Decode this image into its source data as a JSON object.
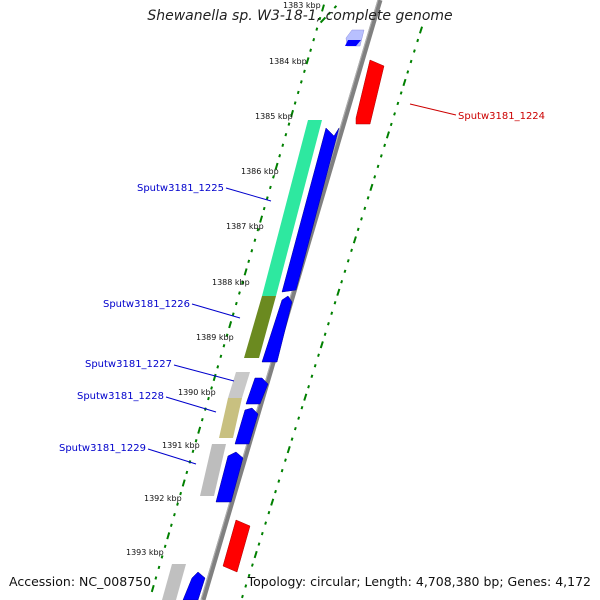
{
  "title": "Shewanella sp. W3-18-1, complete genome",
  "footer": {
    "accession": "Accession: NC_008750",
    "summary": "Topology: circular; Length: 4,708,380 bp; Genes: 4,172"
  },
  "colors": {
    "backbone": "#808080",
    "forward_gene": "#0000ff",
    "reverse_gene": "#ff0000",
    "label_forward": "#0000cc",
    "label_reverse": "#cc0000",
    "ticks": "#008000"
  },
  "scale_labels": [
    "1383 kbp",
    "1384 kbp",
    "1385 kbp",
    "1386 kbp",
    "1387 kbp",
    "1388 kbp",
    "1389 kbp",
    "1390 kbp",
    "1391 kbp",
    "1392 kbp",
    "1393 kbp"
  ],
  "gene_labels": [
    {
      "id": "Sputw3181_1224",
      "color": "#cc0000"
    },
    {
      "id": "Sputw3181_1225",
      "color": "#0000cc"
    },
    {
      "id": "Sputw3181_1226",
      "color": "#0000cc"
    },
    {
      "id": "Sputw3181_1227",
      "color": "#0000cc"
    },
    {
      "id": "Sputw3181_1228",
      "color": "#0000cc"
    },
    {
      "id": "Sputw3181_1229",
      "color": "#0000cc"
    }
  ]
}
